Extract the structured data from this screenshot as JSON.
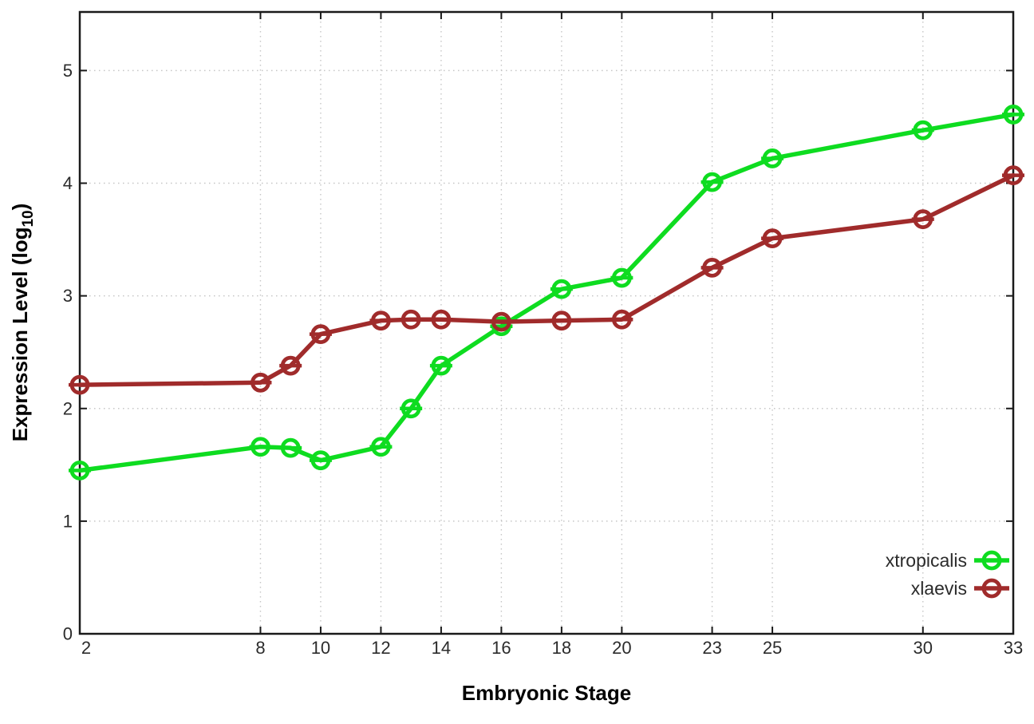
{
  "chart_data": {
    "type": "line",
    "title": "",
    "xlabel": "Embryonic Stage",
    "ylabel": "Expression Level (log10)",
    "ylabel_parts": {
      "main": "Expression Level (log",
      "sub": "10",
      "end": ")"
    },
    "x": [
      2,
      8,
      9,
      10,
      12,
      13,
      14,
      16,
      18,
      20,
      23,
      25,
      30,
      33
    ],
    "xtick_labels": [
      2,
      8,
      10,
      12,
      14,
      16,
      18,
      20,
      23,
      25,
      30,
      33
    ],
    "ytick_labels": [
      0,
      1,
      2,
      3,
      4,
      5
    ],
    "xlim": [
      2,
      33
    ],
    "ylim": [
      0,
      5.52
    ],
    "grid": true,
    "legend_position": "inside-bottom-right",
    "series": [
      {
        "name": "xtropicalis",
        "color": "#0edc20",
        "marker": "open-circle",
        "values": [
          1.45,
          1.66,
          1.65,
          1.54,
          1.66,
          2.0,
          2.38,
          2.73,
          3.06,
          3.16,
          4.01,
          4.22,
          4.47,
          4.61
        ]
      },
      {
        "name": "xlaevis",
        "color": "#a02b2b",
        "marker": "open-circle",
        "values": [
          2.21,
          2.23,
          2.38,
          2.66,
          2.78,
          2.79,
          2.79,
          2.77,
          2.78,
          2.79,
          3.25,
          3.51,
          3.68,
          4.07
        ]
      }
    ],
    "colors": {
      "background": "#ffffff",
      "border": "#1a1a1a",
      "grid": "#c6c6c6",
      "tick_text": "#2b2b2b",
      "title_text": "#000000"
    }
  }
}
